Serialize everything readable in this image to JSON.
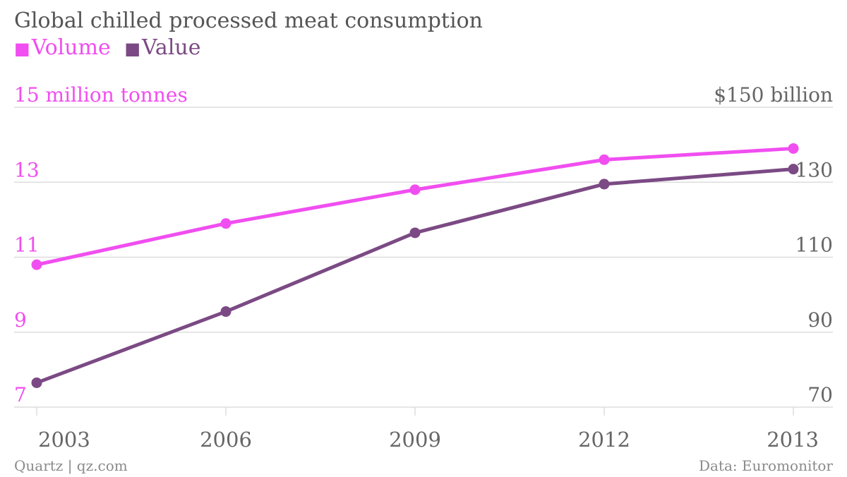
{
  "colors": {
    "volume": "#f04ef0",
    "value": "#7b4a84",
    "grid": "#dddddd",
    "axis_text": "#666666",
    "title": "#555555"
  },
  "title": "Global chilled processed meat consumption",
  "legend": [
    {
      "swatch": "■",
      "label": "Volume"
    },
    {
      "swatch": "■",
      "label": "Value"
    }
  ],
  "chart_data": {
    "type": "line",
    "title": "Global chilled processed meat consumption",
    "categories": [
      "2003",
      "2006",
      "2009",
      "2012",
      "2013"
    ],
    "series": [
      {
        "name": "Volume",
        "axis": "left",
        "values": [
          10.8,
          11.9,
          12.8,
          13.6,
          13.9
        ]
      },
      {
        "name": "Value",
        "axis": "right",
        "values": [
          76.5,
          95.5,
          116.5,
          129.5,
          133.5
        ]
      }
    ],
    "left_axis": {
      "ylim": [
        7,
        15
      ],
      "ticks": [
        "15 million tonnes",
        "13",
        "11",
        "9",
        "7"
      ]
    },
    "right_axis": {
      "ylim": [
        70,
        150
      ],
      "ticks": [
        "$150 billion",
        "130",
        "110",
        "90",
        "70"
      ]
    },
    "grid": true
  },
  "footer": {
    "source_left": "Quartz | qz.com",
    "source_right": "Data: Euromonitor"
  }
}
